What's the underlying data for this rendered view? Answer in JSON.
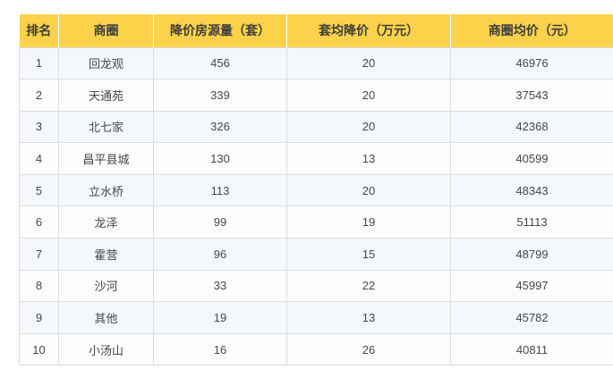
{
  "table": {
    "columns": [
      {
        "key": "rank",
        "label": "排名"
      },
      {
        "key": "district",
        "label": "商圈"
      },
      {
        "key": "listings",
        "label": "降价房源量（套）"
      },
      {
        "key": "avg_cut",
        "label": "套均降价（万元）"
      },
      {
        "key": "avg_price",
        "label": "商圈均价（元）"
      }
    ],
    "rows": [
      {
        "rank": "1",
        "district": "回龙观",
        "listings": "456",
        "avg_cut": "20",
        "avg_price": "46976"
      },
      {
        "rank": "2",
        "district": "天通苑",
        "listings": "339",
        "avg_cut": "20",
        "avg_price": "37543"
      },
      {
        "rank": "3",
        "district": "北七家",
        "listings": "326",
        "avg_cut": "20",
        "avg_price": "42368"
      },
      {
        "rank": "4",
        "district": "昌平县城",
        "listings": "130",
        "avg_cut": "13",
        "avg_price": "40599"
      },
      {
        "rank": "5",
        "district": "立水桥",
        "listings": "113",
        "avg_cut": "20",
        "avg_price": "48343"
      },
      {
        "rank": "6",
        "district": "龙泽",
        "listings": "99",
        "avg_cut": "19",
        "avg_price": "51113"
      },
      {
        "rank": "7",
        "district": "霍营",
        "listings": "96",
        "avg_cut": "15",
        "avg_price": "48799"
      },
      {
        "rank": "8",
        "district": "沙河",
        "listings": "33",
        "avg_cut": "22",
        "avg_price": "45997"
      },
      {
        "rank": "9",
        "district": "其他",
        "listings": "19",
        "avg_cut": "13",
        "avg_price": "45782"
      },
      {
        "rank": "10",
        "district": "小汤山",
        "listings": "16",
        "avg_cut": "26",
        "avg_price": "40811"
      }
    ]
  },
  "colors": {
    "header_bg": "#fbd24a",
    "header_text": "#3d3d3d",
    "odd_row_bg": "#f4f8fd",
    "even_row_bg": "#fcfcfc",
    "border": "#dcdcde",
    "body_text": "#45464c"
  }
}
